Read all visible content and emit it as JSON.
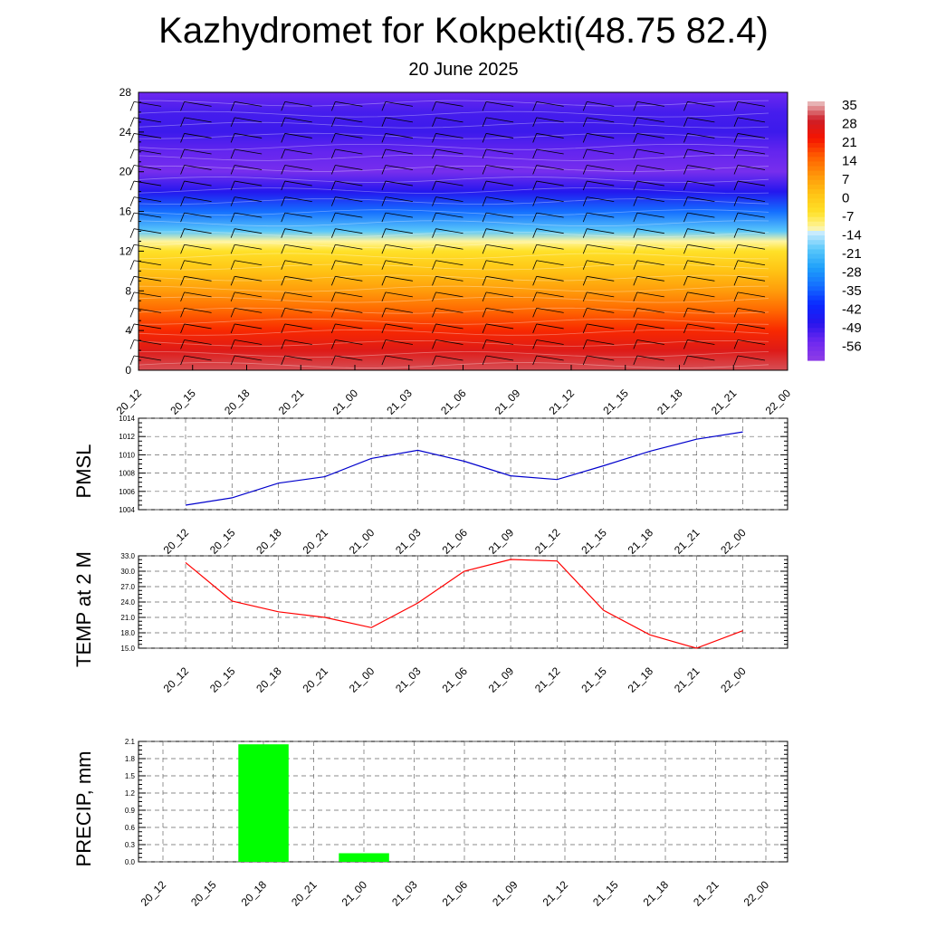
{
  "title": "Kazhydromet for Kokpekti(48.75 82.4)",
  "subtitle": "20 June 2025",
  "time_labels": [
    "20_12",
    "20_15",
    "20_18",
    "20_21",
    "21_00",
    "21_03",
    "21_06",
    "21_09",
    "21_12",
    "21_15",
    "21_18",
    "21_21",
    "22_00"
  ],
  "chart_data": [
    {
      "type": "heatmap",
      "name": "",
      "xlabel": "",
      "ylabel": "",
      "y_ticks": [
        0,
        4,
        8,
        12,
        16,
        20,
        24,
        28
      ],
      "ylim": [
        0,
        28
      ],
      "colorbar": {
        "labels": [
          "35",
          "28",
          "21",
          "14",
          "7",
          "0",
          "-7",
          "-14",
          "-21",
          "-28",
          "-35",
          "-42",
          "-49",
          "-56"
        ],
        "range": [
          -63,
          35
        ]
      },
      "temperature_profile": {
        "heights": [
          0,
          2,
          4,
          6,
          8,
          10,
          12,
          13,
          14,
          16,
          18,
          20,
          22,
          24,
          26,
          28
        ],
        "values": [
          30,
          25,
          19,
          13,
          6,
          0,
          -7,
          -13,
          -21,
          -35,
          -48,
          -58,
          -55,
          -51,
          -52,
          -56
        ]
      },
      "has_wind_barbs": true
    },
    {
      "type": "line",
      "ylabel": "PMSL",
      "y_ticks": [
        1004,
        1006,
        1008,
        1010,
        1012,
        1014
      ],
      "ylim": [
        1004,
        1014
      ],
      "color": "#0000cc",
      "series": [
        {
          "values": [
            1004.5,
            1005.3,
            1006.9,
            1007.6,
            1009.6,
            1010.5,
            1009.3,
            1007.7,
            1007.3,
            1008.8,
            1010.4,
            1011.7,
            1012.5
          ]
        }
      ]
    },
    {
      "type": "line",
      "ylabel": "TEMP at 2 M",
      "y_ticks": [
        "15.0",
        "18.0",
        "21.0",
        "24.0",
        "27.0",
        "30.0",
        "33.0"
      ],
      "ylim": [
        15,
        33
      ],
      "color": "#ff0000",
      "series": [
        {
          "values": [
            31.7,
            24.2,
            22.1,
            21.0,
            19.0,
            23.8,
            30.0,
            32.3,
            32.0,
            22.4,
            17.6,
            15.0,
            18.4
          ]
        }
      ]
    },
    {
      "type": "bar",
      "ylabel": "PRECIP, mm",
      "y_ticks": [
        "0.0",
        "0.3",
        "0.6",
        "0.9",
        "1.2",
        "1.5",
        "1.8",
        "2.1"
      ],
      "ylim": [
        0,
        2.1
      ],
      "color": "#00ff00",
      "categories": [
        "20_12",
        "20_15",
        "20_18",
        "20_21",
        "21_00",
        "21_03",
        "21_06",
        "21_09",
        "21_12",
        "21_15",
        "21_18",
        "21_21",
        "22_00"
      ],
      "values": [
        0,
        0,
        2.05,
        0,
        0.15,
        0,
        0,
        0,
        0,
        0,
        0,
        0,
        0
      ]
    }
  ]
}
